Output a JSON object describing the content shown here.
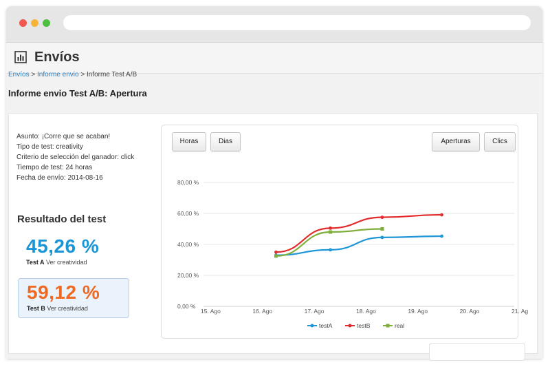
{
  "app": {
    "title": "Envíos"
  },
  "breadcrumb": {
    "item1": "Envíos",
    "item2": "Informe envio",
    "item3": "Informe Test A/B",
    "sep": ">"
  },
  "page": {
    "title": "Informe envio Test A/B: Apertura"
  },
  "info": {
    "asunto": "Asunto: ¡Corre que se acaban!",
    "tipo": "Tipo de test: creativity",
    "criterio": "Criterio de selección del ganador: click",
    "tiempo": "Tiempo de test: 24 horas",
    "fecha": "Fecha de envío: 2014-08-16"
  },
  "result": {
    "title": "Resultado del test",
    "a": {
      "value": "45,26 %",
      "name": "Test A",
      "link": "Ver creatividad"
    },
    "b": {
      "value": "59,12 %",
      "name": "Test B",
      "link": "Ver creatividad"
    }
  },
  "buttons": {
    "horas": "Horas",
    "dias": "Dias",
    "aperturas": "Aperturas",
    "clics": "Clics"
  },
  "colors": {
    "testA": "#1f96d8",
    "testB": "#e32b2b",
    "real": "#7fae3c"
  },
  "chart_data": {
    "type": "line",
    "x": [
      "15. Ago",
      "16. Ago",
      "17. Ago",
      "18. Ago",
      "19. Ago",
      "20. Ago",
      "21. Ag"
    ],
    "yticks": [
      "0,00 %",
      "20,00 %",
      "40,00 %",
      "60,00 %",
      "80,00 %"
    ],
    "ylim": [
      0,
      80
    ],
    "xlim": [
      15,
      21
    ],
    "series": [
      {
        "name": "testA",
        "x": [
          16.4,
          17.45,
          18.45,
          19.6
        ],
        "values": [
          33,
          36.5,
          44.5,
          45.3
        ]
      },
      {
        "name": "testB",
        "x": [
          16.4,
          17.45,
          18.45,
          19.6
        ],
        "values": [
          35,
          50.5,
          57.5,
          59.1
        ]
      },
      {
        "name": "real",
        "x": [
          16.4,
          17.45,
          18.45
        ],
        "values": [
          32.5,
          48,
          50
        ]
      }
    ],
    "legend": "bottom",
    "grid": true
  }
}
